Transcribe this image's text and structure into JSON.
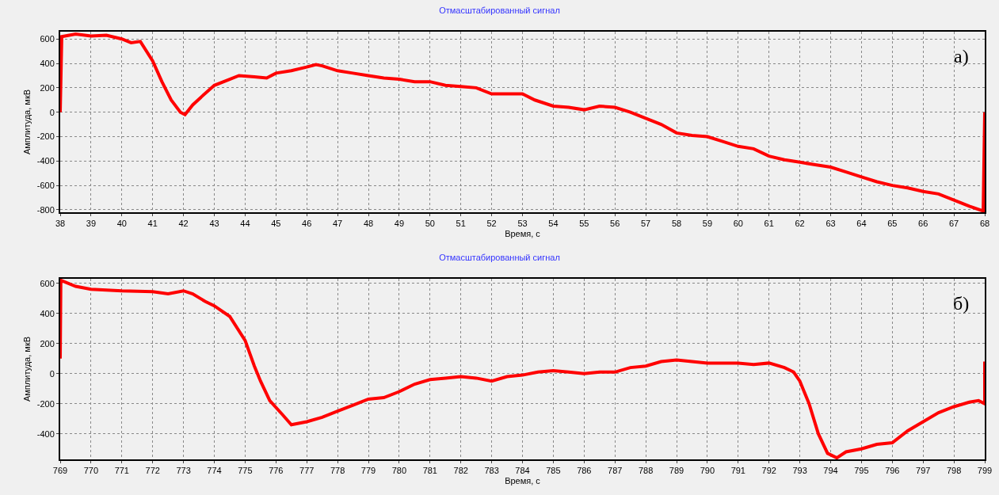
{
  "chart_data": [
    {
      "type": "line",
      "title": "Отмасштабированный сигнал",
      "xlabel": "Время, с",
      "ylabel": "Амплитуда, мкВ",
      "annotations": [
        "а)"
      ],
      "grid": true,
      "marker": "none",
      "line_style": "solid",
      "xlim": [
        38,
        68
      ],
      "xticks": [
        38,
        39,
        40,
        41,
        42,
        43,
        44,
        45,
        46,
        47,
        48,
        49,
        50,
        51,
        52,
        53,
        54,
        55,
        56,
        57,
        58,
        59,
        60,
        61,
        62,
        63,
        64,
        65,
        66,
        67,
        68
      ],
      "ylim": [
        -820,
        660
      ],
      "yticks": [
        -800,
        -600,
        -400,
        -200,
        0,
        200,
        400,
        600
      ],
      "series": [
        {
          "color": "#ff0000",
          "x": [
            38,
            38.05,
            38.5,
            39,
            39.5,
            40,
            40.3,
            40.6,
            41,
            41.3,
            41.6,
            41.9,
            42.05,
            42.3,
            42.6,
            43,
            43.5,
            43.8,
            44.3,
            44.7,
            45,
            45.5,
            46,
            46.3,
            46.5,
            47,
            47.5,
            48,
            48.5,
            49,
            49.5,
            50,
            50.5,
            51,
            51.5,
            52,
            52.5,
            53,
            53.4,
            54,
            54.5,
            55,
            55.5,
            56,
            56.5,
            57,
            57.5,
            58,
            58.5,
            59,
            59.5,
            60,
            60.5,
            61,
            61.5,
            62,
            62.5,
            63,
            63.5,
            64,
            64.5,
            65,
            65.5,
            66,
            66.5,
            67,
            67.5,
            67.95,
            68
          ],
          "values": [
            0,
            620,
            640,
            625,
            630,
            600,
            570,
            580,
            420,
            250,
            100,
            0,
            -20,
            60,
            130,
            220,
            270,
            300,
            290,
            280,
            320,
            340,
            370,
            390,
            380,
            340,
            320,
            300,
            280,
            270,
            250,
            250,
            220,
            210,
            200,
            150,
            150,
            150,
            100,
            50,
            40,
            20,
            50,
            40,
            0,
            -50,
            -100,
            -170,
            -190,
            -200,
            -240,
            -280,
            -300,
            -360,
            -390,
            -410,
            -430,
            -450,
            -490,
            -530,
            -570,
            -600,
            -620,
            -650,
            -670,
            -720,
            -770,
            -810,
            0
          ]
        }
      ]
    },
    {
      "type": "line",
      "title": "Отмасштабированный сигнал",
      "xlabel": "Время, с",
      "ylabel": "Амплитуда, мкВ",
      "annotations": [
        "б)"
      ],
      "grid": true,
      "marker": "none",
      "line_style": "solid",
      "xlim": [
        769,
        799
      ],
      "xticks": [
        769,
        770,
        771,
        772,
        773,
        774,
        775,
        776,
        777,
        778,
        779,
        780,
        781,
        782,
        783,
        784,
        785,
        786,
        787,
        788,
        789,
        790,
        791,
        792,
        793,
        794,
        795,
        796,
        797,
        798,
        799
      ],
      "ylim": [
        -570,
        630
      ],
      "yticks": [
        -400,
        -200,
        0,
        200,
        400,
        600
      ],
      "series": [
        {
          "color": "#ff0000",
          "x": [
            769,
            769.02,
            769.5,
            770,
            771,
            772,
            772.5,
            773,
            773.3,
            773.7,
            774,
            774.5,
            775,
            775.3,
            775.5,
            775.8,
            776.2,
            776.5,
            777,
            777.5,
            778,
            778.5,
            779,
            779.5,
            780,
            780.5,
            781,
            781.5,
            782,
            782.5,
            783,
            783.5,
            784,
            784.5,
            785,
            785.5,
            786,
            786.5,
            787,
            787.5,
            788,
            788.5,
            789,
            789.5,
            790,
            790.5,
            791,
            791.5,
            792,
            792.5,
            792.8,
            793,
            793.3,
            793.6,
            793.9,
            794.2,
            794.5,
            795,
            795.5,
            796,
            796.5,
            797,
            797.5,
            798,
            798.5,
            798.8,
            799,
            799
          ],
          "values": [
            100,
            620,
            580,
            560,
            550,
            545,
            530,
            550,
            530,
            480,
            450,
            380,
            220,
            50,
            -50,
            -180,
            -270,
            -340,
            -320,
            -290,
            -250,
            -210,
            -170,
            -160,
            -120,
            -70,
            -40,
            -30,
            -20,
            -30,
            -50,
            -20,
            -10,
            10,
            20,
            10,
            0,
            10,
            10,
            40,
            50,
            80,
            90,
            80,
            70,
            70,
            70,
            60,
            70,
            40,
            10,
            -50,
            -200,
            -400,
            -530,
            -560,
            -520,
            -500,
            -470,
            -460,
            -380,
            -320,
            -260,
            -220,
            -190,
            -180,
            -200,
            80
          ]
        }
      ]
    }
  ]
}
